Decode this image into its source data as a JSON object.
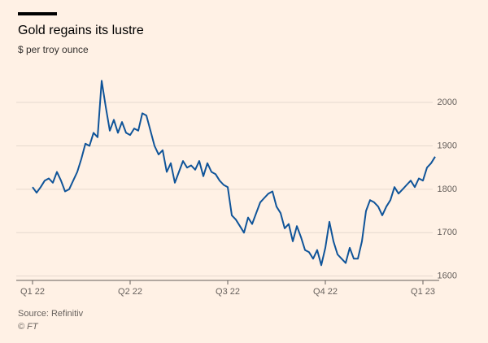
{
  "chart_data": {
    "type": "line",
    "title": "Gold regains its lustre",
    "subtitle": "$ per troy ounce",
    "source": "Source: Refinitiv",
    "credit": "© FT",
    "categories": [
      "Q1 22",
      null,
      null,
      null,
      null,
      null,
      null,
      null,
      null,
      null,
      null,
      null,
      null,
      null,
      null,
      null,
      null,
      null,
      null,
      null,
      null,
      null,
      null,
      null,
      "Q2 22",
      null,
      null,
      null,
      null,
      null,
      null,
      null,
      null,
      null,
      null,
      null,
      null,
      null,
      null,
      null,
      null,
      null,
      null,
      null,
      null,
      null,
      null,
      null,
      "Q3 22",
      null,
      null,
      null,
      null,
      null,
      null,
      null,
      null,
      null,
      null,
      null,
      null,
      null,
      null,
      null,
      null,
      null,
      null,
      null,
      null,
      null,
      null,
      null,
      "Q4 22",
      null,
      null,
      null,
      null,
      null,
      null,
      null,
      null,
      null,
      null,
      null,
      null,
      null,
      null,
      null,
      null,
      null,
      null,
      null,
      null,
      null,
      null,
      null,
      "Q1 23",
      null,
      null,
      null
    ],
    "values": [
      1805,
      1792,
      1805,
      1820,
      1825,
      1815,
      1840,
      1820,
      1795,
      1800,
      1820,
      1840,
      1870,
      1905,
      1900,
      1930,
      1920,
      2050,
      1990,
      1935,
      1960,
      1930,
      1955,
      1930,
      1925,
      1940,
      1935,
      1975,
      1970,
      1935,
      1900,
      1880,
      1890,
      1840,
      1860,
      1815,
      1840,
      1865,
      1850,
      1855,
      1845,
      1865,
      1830,
      1860,
      1840,
      1835,
      1820,
      1810,
      1805,
      1740,
      1730,
      1715,
      1700,
      1735,
      1720,
      1745,
      1770,
      1780,
      1790,
      1795,
      1760,
      1745,
      1710,
      1720,
      1680,
      1715,
      1690,
      1660,
      1655,
      1640,
      1660,
      1625,
      1665,
      1725,
      1680,
      1650,
      1640,
      1630,
      1665,
      1640,
      1640,
      1680,
      1750,
      1775,
      1770,
      1760,
      1740,
      1760,
      1775,
      1805,
      1790,
      1800,
      1810,
      1820,
      1805,
      1825,
      1820,
      1850,
      1860,
      1875
    ],
    "color": "#0f5499",
    "ylim": [
      1590,
      2075
    ],
    "yticks": [
      1600,
      1700,
      1800,
      1900,
      2000
    ],
    "grid": true
  }
}
